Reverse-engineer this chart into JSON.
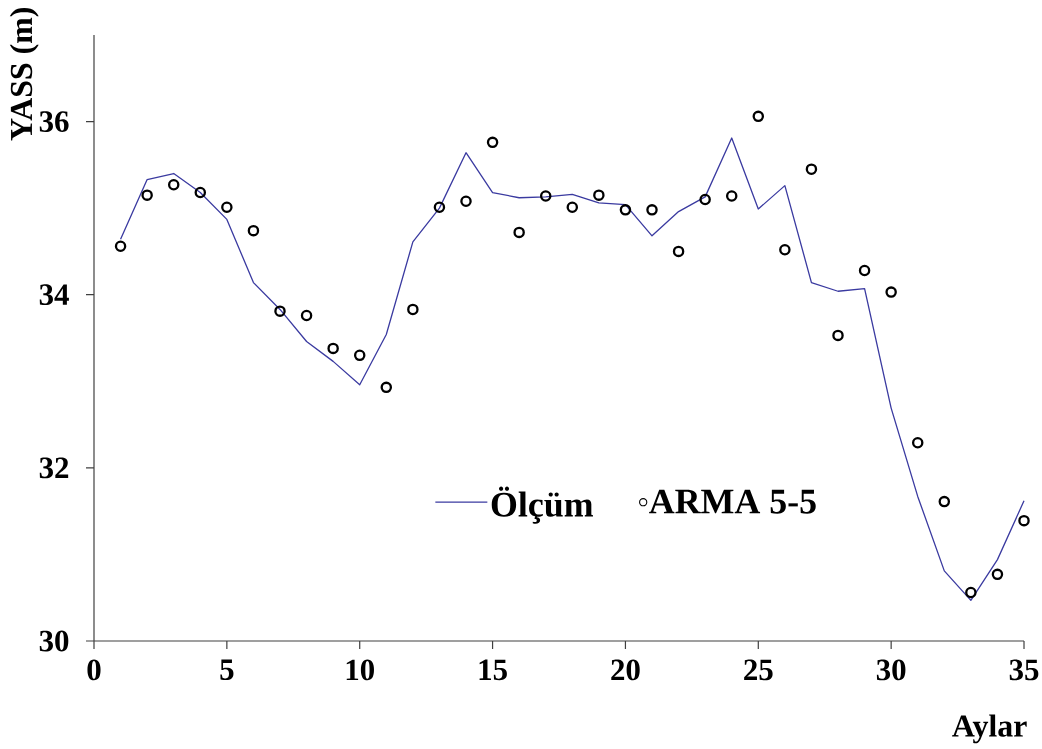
{
  "chart_data": {
    "type": "line",
    "xlabel": "Aylar",
    "ylabel": "YASS (m)",
    "x": [
      1,
      2,
      3,
      4,
      5,
      6,
      7,
      8,
      9,
      10,
      11,
      12,
      13,
      14,
      15,
      16,
      17,
      18,
      19,
      20,
      21,
      22,
      23,
      24,
      25,
      26,
      27,
      28,
      29,
      30,
      31,
      32,
      33,
      34,
      35
    ],
    "series": [
      {
        "name": "Ölçüm",
        "type": "line",
        "color": "#3a3aa0",
        "marker": "none",
        "line_style": "solid",
        "values": [
          34.64,
          35.33,
          35.4,
          35.18,
          34.87,
          34.14,
          33.83,
          33.46,
          33.23,
          32.96,
          33.54,
          34.61,
          35.0,
          35.64,
          35.18,
          35.12,
          35.13,
          35.16,
          35.06,
          35.04,
          34.68,
          34.96,
          35.13,
          35.81,
          34.99,
          35.26,
          34.14,
          34.04,
          34.07,
          32.69,
          31.67,
          30.81,
          30.47,
          30.94,
          31.62
        ]
      },
      {
        "name": "ARMA 5-5",
        "type": "scatter",
        "color": "#000000",
        "marker": "circle",
        "values": [
          34.56,
          35.15,
          35.27,
          35.18,
          35.01,
          34.74,
          33.81,
          33.76,
          33.38,
          33.3,
          32.93,
          33.83,
          35.01,
          35.08,
          35.76,
          34.72,
          35.14,
          35.01,
          35.15,
          34.98,
          34.98,
          34.5,
          35.1,
          35.14,
          36.06,
          34.52,
          35.45,
          33.53,
          34.28,
          34.03,
          32.29,
          31.61,
          30.56,
          30.77,
          31.39
        ]
      }
    ],
    "xlim": [
      0,
      35
    ],
    "ylim": [
      30,
      37
    ],
    "xticks": [
      0,
      5,
      10,
      15,
      20,
      25,
      30,
      35
    ],
    "yticks": [
      30,
      32,
      34,
      36
    ],
    "grid": false,
    "legend": "bottom"
  }
}
